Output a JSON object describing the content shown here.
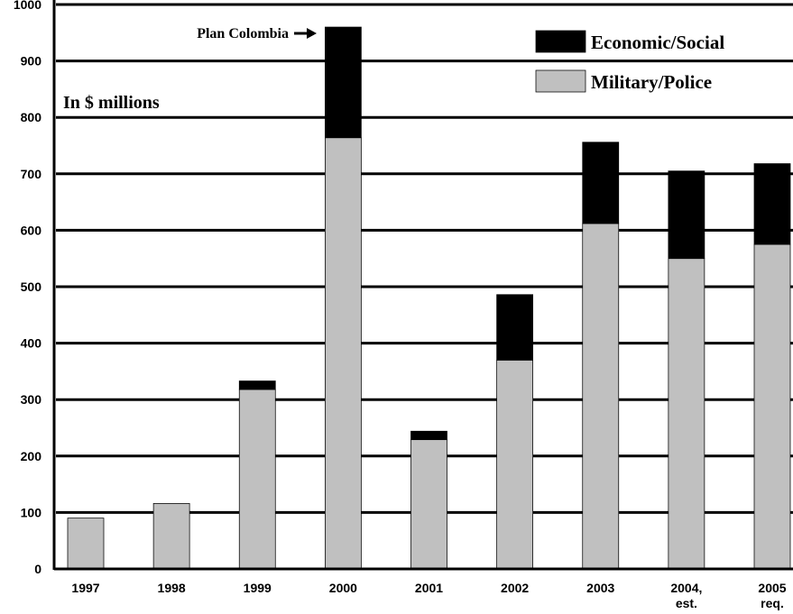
{
  "chart_data": {
    "type": "bar",
    "stacked": true,
    "annotations": {
      "units": "In $ millions",
      "plan": "Plan Colombia"
    },
    "categories": [
      [
        "1997"
      ],
      [
        "1998"
      ],
      [
        "1999"
      ],
      [
        "2000"
      ],
      [
        "2001"
      ],
      [
        "2002"
      ],
      [
        "2003"
      ],
      [
        "2004,",
        "est."
      ],
      [
        "2005",
        "req."
      ]
    ],
    "series": [
      {
        "name": "Military/Police",
        "color": "#c0c0c0",
        "values": [
          90,
          116,
          318,
          764,
          229,
          370,
          612,
          550,
          575
        ]
      },
      {
        "name": "Economic/Social",
        "color": "#000000",
        "values": [
          0,
          0,
          15,
          196,
          15,
          116,
          144,
          155,
          143
        ]
      }
    ],
    "ylim": [
      0,
      1000
    ],
    "yticks": [
      "0",
      "100",
      "200",
      "300",
      "400",
      "500",
      "600",
      "700",
      "800",
      "900",
      "1000"
    ],
    "grid": true,
    "legend": "top-right"
  }
}
